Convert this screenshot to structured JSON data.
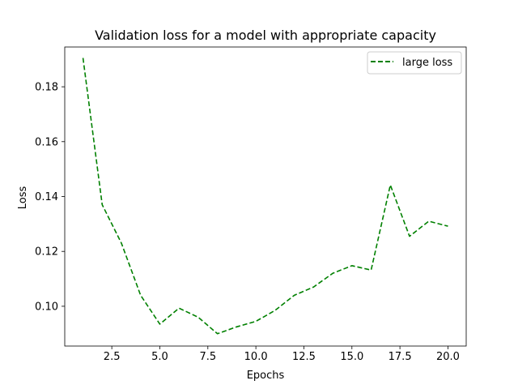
{
  "chart_data": {
    "type": "line",
    "title": "Validation loss for a model with appropriate capacity",
    "xlabel": "Epochs",
    "ylabel": "Loss",
    "xlim": [
      0.05,
      20.95
    ],
    "ylim": [
      0.0855,
      0.1945
    ],
    "xticks": [
      2.5,
      5.0,
      7.5,
      10.0,
      12.5,
      15.0,
      17.5,
      20.0
    ],
    "xtick_labels": [
      "2.5",
      "5.0",
      "7.5",
      "10.0",
      "12.5",
      "15.0",
      "17.5",
      "20.0"
    ],
    "yticks": [
      0.1,
      0.12,
      0.14,
      0.16,
      0.18
    ],
    "ytick_labels": [
      "0.10",
      "0.12",
      "0.14",
      "0.16",
      "0.18"
    ],
    "grid": false,
    "legend_position": "upper right",
    "series": [
      {
        "name": "large loss",
        "color": "#008000",
        "style": "dashed",
        "x": [
          1,
          2,
          3,
          4,
          5,
          6,
          7,
          8,
          9,
          10,
          11,
          12,
          13,
          14,
          15,
          16,
          17,
          18,
          19,
          20
        ],
        "y": [
          0.1905,
          0.137,
          0.123,
          0.104,
          0.0935,
          0.0993,
          0.096,
          0.09,
          0.0925,
          0.0945,
          0.0985,
          0.104,
          0.107,
          0.112,
          0.1148,
          0.1132,
          0.1442,
          0.1255,
          0.131,
          0.1292
        ]
      }
    ]
  }
}
